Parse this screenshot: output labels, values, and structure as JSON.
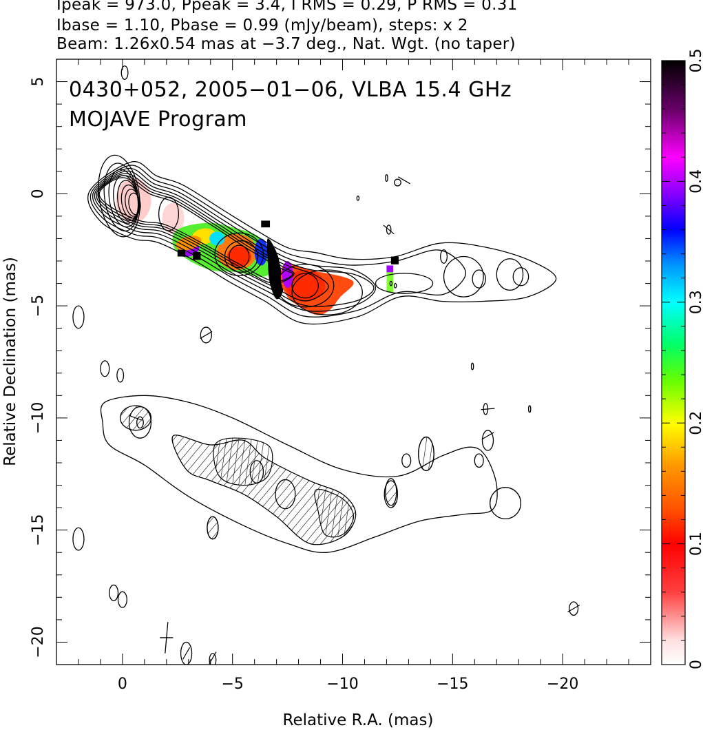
{
  "header": {
    "line1": "Ipeak = 973.0, Ppeak = 3.4, I RMS = 0.29, P RMS = 0.31",
    "line2": "Ibase = 1.10, Pbase = 0.99 (mJy/beam), steps: x 2",
    "line3": "Beam: 1.26x0.54 mas at −3.7 deg., Nat. Wgt. (no taper)"
  },
  "annotations": {
    "source_line": "0430+052, 2005−01−06, VLBA 15.4 GHz",
    "program_line": "MOJAVE Program"
  },
  "chart_data": {
    "type": "contour_map",
    "title": "0430+052, 2005-01-06, VLBA 15.4 GHz",
    "subtitle": "MOJAVE Program",
    "xlabel": "Relative R.A. (mas)",
    "ylabel": "Relative Declination (mas)",
    "xlim": [
      3,
      -24
    ],
    "ylim": [
      -21,
      6
    ],
    "x_ticks": [
      0,
      -5,
      -10,
      -15,
      -20
    ],
    "x_tick_labels": [
      "0",
      "−5",
      "−10",
      "−15",
      "−20"
    ],
    "y_ticks": [
      5,
      0,
      -5,
      -10,
      -15,
      -20
    ],
    "y_tick_labels": [
      "5",
      "0",
      "−5",
      "−10",
      "−15",
      "−20"
    ],
    "colorbar": {
      "range": [
        0,
        0.5
      ],
      "ticks": [
        0,
        0.1,
        0.2,
        0.3,
        0.4,
        0.5
      ],
      "tick_labels": [
        "0",
        "0.1",
        "0.2",
        "0.3",
        "0.4",
        "0.5"
      ],
      "colormap": [
        "#ffffff",
        "#ff0000",
        "#ff8800",
        "#ffff00",
        "#00ff00",
        "#00ffff",
        "#0000ff",
        "#ff00ff",
        "#000000"
      ]
    },
    "stats": {
      "Ipeak": 973.0,
      "Ppeak": 3.4,
      "I_RMS": 0.29,
      "P_RMS": 0.31,
      "Ibase": 1.1,
      "Pbase": 0.99,
      "units": "mJy/beam",
      "contour_step_factor": 2
    },
    "beam": {
      "major_mas": 1.26,
      "minor_mas": 0.54,
      "pa_deg": -3.7,
      "weighting": "Nat. Wgt. (no taper)"
    },
    "jet_ridge_upper": [
      [
        0.2,
        0.0
      ],
      [
        -2.0,
        -1.0
      ],
      [
        -5.3,
        -2.8
      ],
      [
        -8.2,
        -4.1
      ],
      [
        -12.0,
        -4.0
      ],
      [
        -15.0,
        -3.6
      ],
      [
        -18.0,
        -3.7
      ]
    ],
    "jet_ridge_lower": [
      [
        0.0,
        -10.0
      ],
      [
        -4.0,
        -11.8
      ],
      [
        -8.0,
        -13.5
      ],
      [
        -12.0,
        -14.0
      ],
      [
        -18.0,
        -13.6
      ]
    ],
    "knots": [
      {
        "x": 0.0,
        "y": 0.0
      },
      {
        "x": -2.1,
        "y": -0.9
      },
      {
        "x": -5.3,
        "y": -2.7
      },
      {
        "x": -8.3,
        "y": -4.1
      },
      {
        "x": -15.6,
        "y": -3.7
      }
    ],
    "fractional_polarization_regions": [
      {
        "x": -3.0,
        "y": -1.0,
        "value": 0.05
      },
      {
        "x": -5.0,
        "y": -2.6,
        "value": 0.15
      },
      {
        "x": -7.0,
        "y": -4.0,
        "value": 0.5
      },
      {
        "x": -9.0,
        "y": -4.3,
        "value": 0.1
      },
      {
        "x": -12.2,
        "y": -3.7,
        "value": 0.2
      }
    ],
    "beam_marker_position": [
      -2.0,
      -19.8
    ]
  }
}
